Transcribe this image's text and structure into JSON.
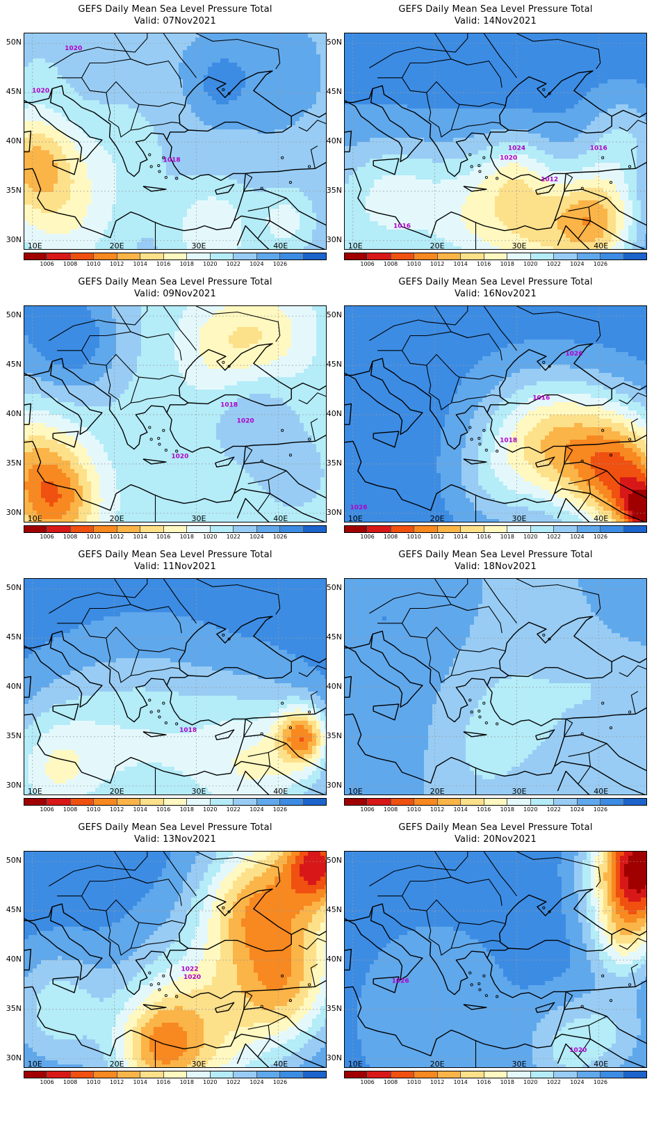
{
  "title_line1": "GEFS Daily Mean Sea Level Pressure Total",
  "lat_labels": [
    "50N",
    "45N",
    "40N",
    "35N",
    "30N"
  ],
  "lon_labels": [
    "10E",
    "20E",
    "30E",
    "40E"
  ],
  "colorbar": {
    "labels": [
      "1006",
      "1008",
      "1010",
      "1012",
      "1014",
      "1016",
      "1018",
      "1020",
      "1022",
      "1024",
      "1026"
    ],
    "colors": [
      "#a00000",
      "#d81818",
      "#f05010",
      "#f88820",
      "#fbb448",
      "#fde08a",
      "#fff8c0",
      "#e4f8fc",
      "#b4ecf8",
      "#98ccf4",
      "#60a8ec",
      "#3c8ce4",
      "#1c64cc"
    ]
  },
  "panels": [
    {
      "valid": "Valid: 07Nov2021",
      "contour_labels": [
        "1020",
        "1020",
        "1018"
      ]
    },
    {
      "valid": "Valid: 14Nov2021",
      "contour_labels": [
        "1024",
        "1020",
        "1016",
        "1012",
        "1016"
      ]
    },
    {
      "valid": "Valid: 09Nov2021",
      "contour_labels": [
        "1018",
        "1020",
        "1020"
      ]
    },
    {
      "valid": "Valid: 16Nov2021",
      "contour_labels": [
        "1026",
        "1016",
        "1018",
        "1026"
      ]
    },
    {
      "valid": "Valid: 11Nov2021",
      "contour_labels": [
        "1018"
      ]
    },
    {
      "valid": "Valid: 18Nov2021",
      "contour_labels": []
    },
    {
      "valid": "Valid: 13Nov2021",
      "contour_labels": [
        "1022",
        "1020"
      ]
    },
    {
      "valid": "Valid: 20Nov2021",
      "contour_labels": [
        "1026",
        "1020"
      ]
    }
  ]
}
